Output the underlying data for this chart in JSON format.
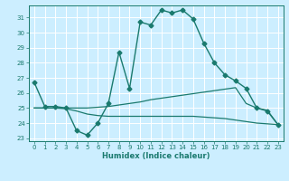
{
  "title": "",
  "xlabel": "Humidex (Indice chaleur)",
  "bg_color": "#cceeff",
  "grid_color": "#ffffff",
  "line_color": "#1a7a6e",
  "xlim": [
    -0.5,
    23.5
  ],
  "ylim": [
    22.8,
    31.8
  ],
  "xticks": [
    0,
    1,
    2,
    3,
    4,
    5,
    6,
    7,
    8,
    9,
    10,
    11,
    12,
    13,
    14,
    15,
    16,
    17,
    18,
    19,
    20,
    21,
    22,
    23
  ],
  "yticks": [
    23,
    24,
    25,
    26,
    27,
    28,
    29,
    30,
    31
  ],
  "series": [
    {
      "x": [
        0,
        1,
        2,
        3,
        4,
        5,
        6,
        7,
        8,
        9,
        10,
        11,
        12,
        13,
        14,
        15,
        16,
        17,
        18,
        19,
        20,
        21,
        22,
        23
      ],
      "y": [
        26.7,
        25.1,
        25.1,
        25.0,
        23.5,
        23.2,
        24.0,
        25.3,
        28.7,
        26.3,
        30.7,
        30.5,
        31.5,
        31.3,
        31.5,
        30.9,
        29.3,
        28.0,
        27.2,
        26.8,
        26.3,
        25.0,
        24.8,
        23.9
      ],
      "marker": "D",
      "markersize": 2.5,
      "linewidth": 1.0
    },
    {
      "x": [
        0,
        1,
        2,
        3,
        4,
        5,
        6,
        7,
        8,
        9,
        10,
        11,
        12,
        13,
        14,
        15,
        16,
        17,
        18,
        19,
        20,
        21,
        22,
        23
      ],
      "y": [
        25.0,
        25.0,
        25.0,
        25.0,
        25.0,
        25.0,
        25.05,
        25.1,
        25.2,
        25.3,
        25.4,
        25.55,
        25.65,
        25.75,
        25.85,
        25.95,
        26.05,
        26.15,
        26.25,
        26.35,
        25.3,
        25.0,
        24.85,
        23.9
      ],
      "marker": "",
      "markersize": 0,
      "linewidth": 0.9
    },
    {
      "x": [
        0,
        1,
        2,
        3,
        4,
        5,
        6,
        7,
        8,
        9,
        10,
        11,
        12,
        13,
        14,
        15,
        16,
        17,
        18,
        19,
        20,
        21,
        22,
        23
      ],
      "y": [
        25.0,
        25.0,
        25.0,
        24.95,
        24.8,
        24.6,
        24.5,
        24.45,
        24.45,
        24.45,
        24.45,
        24.45,
        24.45,
        24.45,
        24.45,
        24.45,
        24.4,
        24.35,
        24.3,
        24.2,
        24.1,
        24.0,
        23.95,
        23.9
      ],
      "marker": "",
      "markersize": 0,
      "linewidth": 0.9
    }
  ]
}
